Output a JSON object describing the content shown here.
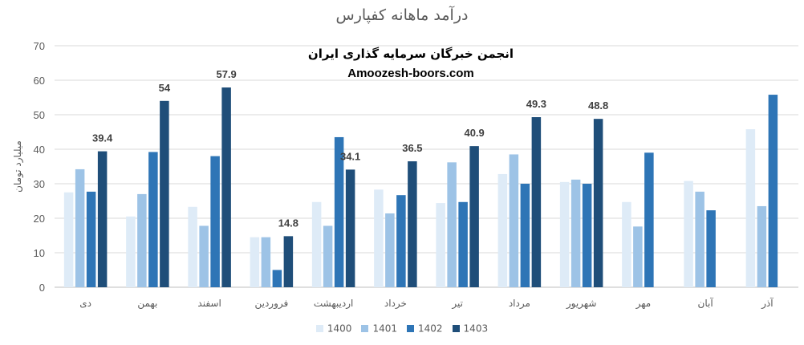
{
  "watermark": {
    "line1": "انجمن خبرگان سرمایه گذاری ایران",
    "line2": "Amoozesh-boors.com"
  },
  "colors": {
    "1400": "#deebf7",
    "1401": "#9dc3e6",
    "1402": "#2e75b6",
    "1403": "#1f4e79",
    "grid": "#d9d9d9",
    "text": "#595959"
  },
  "chart_data": {
    "type": "bar",
    "title": "درآمد ماهانه کفپارس",
    "xlabel": "",
    "ylabel": "میلیارد تومان",
    "ylim": [
      0,
      70
    ],
    "yticks": [
      0,
      10,
      20,
      30,
      40,
      50,
      60,
      70
    ],
    "grid": true,
    "legend_position": "bottom",
    "categories": [
      "دی",
      "بهمن",
      "اسفند",
      "فروردین",
      "اردیبهشت",
      "خرداد",
      "تیر",
      "مرداد",
      "شهریور",
      "مهر",
      "آبان",
      "آذر"
    ],
    "series": [
      {
        "name": "1400",
        "values": [
          27.5,
          20.5,
          23.3,
          14.5,
          24.7,
          28.3,
          24.4,
          32.8,
          30.5,
          24.7,
          30.8,
          45.8
        ]
      },
      {
        "name": "1401",
        "values": [
          34.2,
          27.0,
          17.8,
          14.5,
          17.8,
          21.4,
          36.2,
          38.5,
          31.2,
          17.6,
          27.7,
          23.5
        ]
      },
      {
        "name": "1402",
        "values": [
          27.7,
          39.2,
          38.0,
          5.0,
          43.5,
          26.7,
          24.7,
          30.0,
          30.0,
          39.0,
          22.3,
          55.8
        ]
      },
      {
        "name": "1403",
        "values": [
          39.4,
          54,
          57.9,
          14.8,
          34.1,
          36.5,
          40.9,
          49.3,
          48.8,
          null,
          null,
          null
        ]
      }
    ],
    "data_labels": {
      "series": "1403",
      "labels": [
        "39.4",
        "54",
        "57.9",
        "14.8",
        "34.1",
        "36.5",
        "40.9",
        "49.3",
        "48.8",
        "",
        "",
        ""
      ]
    }
  }
}
